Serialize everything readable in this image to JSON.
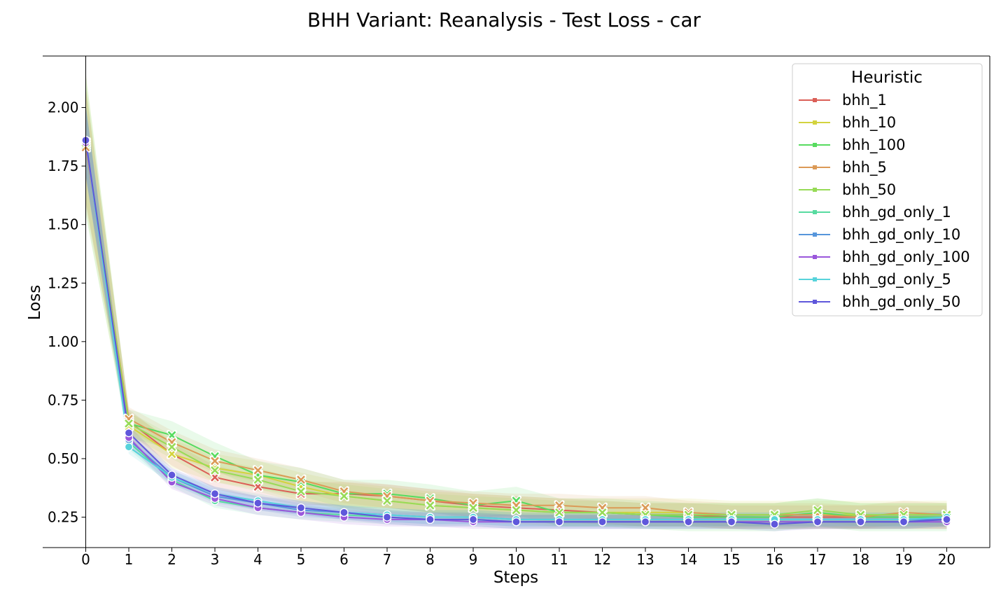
{
  "chart_data": {
    "type": "line",
    "title": "BHH Variant: Reanalysis - Test Loss - car",
    "xlabel": "Steps",
    "ylabel": "Loss",
    "xlim": [
      -1,
      21
    ],
    "ylim": [
      0.12,
      2.22
    ],
    "x": [
      0,
      1,
      2,
      3,
      4,
      5,
      6,
      7,
      8,
      9,
      10,
      11,
      12,
      13,
      14,
      15,
      16,
      17,
      18,
      19,
      20
    ],
    "x_ticks": [
      "0",
      "1",
      "2",
      "3",
      "4",
      "5",
      "6",
      "7",
      "8",
      "9",
      "10",
      "11",
      "12",
      "13",
      "14",
      "15",
      "16",
      "17",
      "18",
      "19",
      "20"
    ],
    "y_ticks": [
      "0.25",
      "0.50",
      "0.75",
      "1.00",
      "1.25",
      "1.50",
      "1.75",
      "2.00"
    ],
    "grid": false,
    "legend": {
      "title": "Heuristic",
      "position": "top-right"
    },
    "series": [
      {
        "name": "bhh_1",
        "color": "#db5f57",
        "marker": "x",
        "values": [
          1.84,
          0.66,
          0.52,
          0.42,
          0.38,
          0.35,
          0.35,
          0.34,
          0.32,
          0.3,
          0.29,
          0.28,
          0.27,
          0.26,
          0.26,
          0.25,
          0.25,
          0.25,
          0.25,
          0.25,
          0.25
        ],
        "band": 0.05
      },
      {
        "name": "bhh_10",
        "color": "#d3d33e",
        "marker": "x",
        "values": [
          1.85,
          0.64,
          0.52,
          0.46,
          0.43,
          0.38,
          0.34,
          0.32,
          0.3,
          0.29,
          0.28,
          0.27,
          0.27,
          0.27,
          0.27,
          0.26,
          0.26,
          0.26,
          0.26,
          0.26,
          0.26
        ],
        "band": 0.06
      },
      {
        "name": "bhh_100",
        "color": "#57db5f",
        "marker": "x",
        "values": [
          1.84,
          0.65,
          0.6,
          0.51,
          0.43,
          0.4,
          0.35,
          0.35,
          0.33,
          0.3,
          0.32,
          0.27,
          0.27,
          0.26,
          0.25,
          0.25,
          0.25,
          0.27,
          0.25,
          0.25,
          0.25
        ],
        "band": 0.06
      },
      {
        "name": "bhh_5",
        "color": "#db9a57",
        "marker": "x",
        "values": [
          1.83,
          0.67,
          0.57,
          0.49,
          0.45,
          0.41,
          0.36,
          0.34,
          0.32,
          0.31,
          0.3,
          0.3,
          0.29,
          0.29,
          0.27,
          0.26,
          0.26,
          0.26,
          0.25,
          0.27,
          0.26
        ],
        "band": 0.05
      },
      {
        "name": "bhh_50",
        "color": "#97db57",
        "marker": "x",
        "values": [
          1.85,
          0.65,
          0.55,
          0.45,
          0.41,
          0.36,
          0.34,
          0.32,
          0.3,
          0.29,
          0.28,
          0.27,
          0.27,
          0.26,
          0.26,
          0.26,
          0.26,
          0.28,
          0.26,
          0.26,
          0.26
        ],
        "band": 0.05
      },
      {
        "name": "bhh_gd_only_1",
        "color": "#57dba0",
        "marker": "o",
        "values": [
          1.86,
          0.57,
          0.41,
          0.32,
          0.29,
          0.27,
          0.26,
          0.25,
          0.24,
          0.24,
          0.23,
          0.23,
          0.23,
          0.23,
          0.23,
          0.23,
          0.23,
          0.23,
          0.23,
          0.23,
          0.24
        ],
        "band": 0.03
      },
      {
        "name": "bhh_gd_only_10",
        "color": "#5796db",
        "marker": "o",
        "values": [
          1.86,
          0.58,
          0.42,
          0.34,
          0.31,
          0.28,
          0.27,
          0.26,
          0.25,
          0.25,
          0.24,
          0.24,
          0.24,
          0.24,
          0.24,
          0.24,
          0.24,
          0.24,
          0.24,
          0.24,
          0.24
        ],
        "band": 0.03
      },
      {
        "name": "bhh_gd_only_100",
        "color": "#9a57db",
        "marker": "o",
        "values": [
          1.85,
          0.59,
          0.4,
          0.33,
          0.29,
          0.27,
          0.25,
          0.24,
          0.24,
          0.23,
          0.23,
          0.23,
          0.23,
          0.23,
          0.23,
          0.23,
          0.23,
          0.23,
          0.23,
          0.23,
          0.23
        ],
        "band": 0.03
      },
      {
        "name": "bhh_gd_only_5",
        "color": "#57d3db",
        "marker": "o",
        "values": [
          1.86,
          0.55,
          0.42,
          0.35,
          0.32,
          0.29,
          0.27,
          0.26,
          0.25,
          0.25,
          0.24,
          0.24,
          0.24,
          0.24,
          0.24,
          0.24,
          0.24,
          0.24,
          0.24,
          0.24,
          0.25
        ],
        "band": 0.03
      },
      {
        "name": "bhh_gd_only_50",
        "color": "#5f57db",
        "marker": "o",
        "values": [
          1.86,
          0.61,
          0.43,
          0.35,
          0.31,
          0.29,
          0.27,
          0.25,
          0.24,
          0.24,
          0.23,
          0.23,
          0.23,
          0.23,
          0.23,
          0.23,
          0.22,
          0.23,
          0.23,
          0.23,
          0.24
        ],
        "band": 0.03
      }
    ]
  }
}
